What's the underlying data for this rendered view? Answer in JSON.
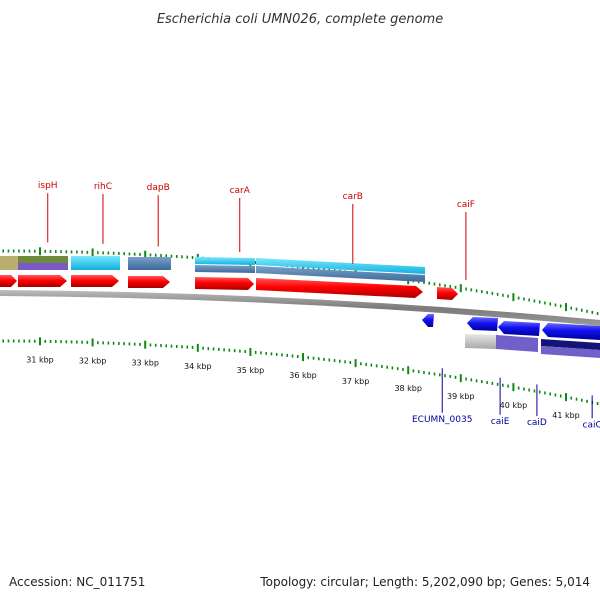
{
  "title": "Escherichia coli UMN026, complete genome",
  "footer": {
    "accession": "Accession: NC_011751",
    "summary": "Topology: circular; Length: 5,202,090 bp; Genes: 5,014"
  },
  "colors": {
    "forward_gene": "#ee0000",
    "reverse_gene": "#0000ee",
    "tick": "#118811",
    "backbone": "#888888",
    "top_label": "#cc0000",
    "bottom_label": "#000099"
  },
  "scale": {
    "unit": "kbp",
    "labels": [
      {
        "kbp": 31,
        "text": "31 kbp"
      },
      {
        "kbp": 32,
        "text": "32 kbp"
      },
      {
        "kbp": 33,
        "text": "33 kbp"
      },
      {
        "kbp": 34,
        "text": "34 kbp"
      },
      {
        "kbp": 35,
        "text": "35 kbp"
      },
      {
        "kbp": 36,
        "text": "36 kbp"
      },
      {
        "kbp": 37,
        "text": "37 kbp"
      },
      {
        "kbp": 38,
        "text": "38 kbp"
      },
      {
        "kbp": 39,
        "text": "39 kbp"
      },
      {
        "kbp": 40,
        "text": "40 kbp"
      },
      {
        "kbp": 41,
        "text": "41 kbp"
      }
    ]
  },
  "genes": {
    "top_labels": [
      {
        "text": "ispH",
        "kbp": 30.9
      },
      {
        "text": "rihC",
        "kbp": 31.95
      },
      {
        "text": "dapB",
        "kbp": 33.0
      },
      {
        "text": "carA",
        "kbp": 34.55
      },
      {
        "text": "carB",
        "kbp": 36.7
      },
      {
        "text": "caiF",
        "kbp": 38.85
      }
    ],
    "bottom_labels": [
      {
        "text": "ECUMN_0035",
        "kbp": 38.4
      },
      {
        "text": "caiE",
        "kbp": 39.5
      },
      {
        "text": "caiD",
        "kbp": 40.2
      },
      {
        "text": "caiC",
        "kbp": 41.25
      }
    ]
  }
}
